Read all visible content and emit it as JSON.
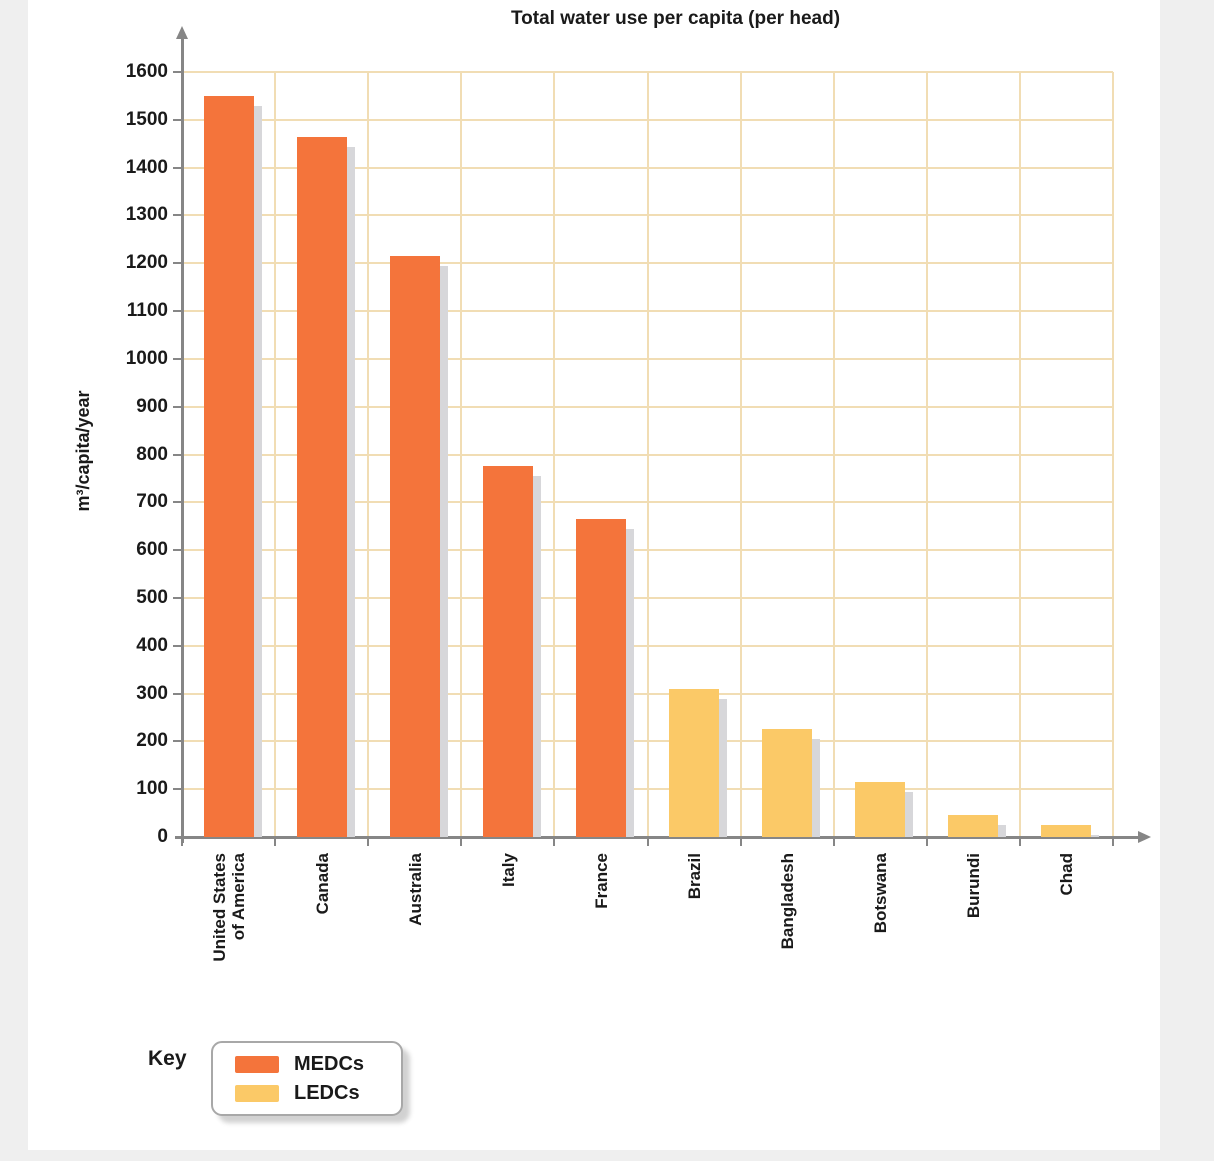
{
  "chart_data": {
    "type": "bar",
    "title": "Total water use per capita (per head)",
    "ylabel": "m³/capita/year",
    "xlabel": "",
    "ylim": [
      0,
      1600
    ],
    "ytick_step": 100,
    "grid": true,
    "legend_position": "bottom-left",
    "categories": [
      "United States\nof America",
      "Canada",
      "Australia",
      "Italy",
      "France",
      "Brazil",
      "Bangladesh",
      "Botswana",
      "Burundi",
      "Chad"
    ],
    "values": [
      1550,
      1465,
      1215,
      775,
      665,
      310,
      225,
      115,
      45,
      25
    ],
    "groups": [
      "MEDCs",
      "MEDCs",
      "MEDCs",
      "MEDCs",
      "MEDCs",
      "LEDCs",
      "LEDCs",
      "LEDCs",
      "LEDCs",
      "LEDCs"
    ],
    "group_colors": {
      "MEDCs": "#f4743b",
      "LEDCs": "#fbc967"
    }
  },
  "key": {
    "label": "Key",
    "items": [
      {
        "label": "MEDCs",
        "color": "#f4743b"
      },
      {
        "label": "LEDCs",
        "color": "#fbc967"
      }
    ]
  },
  "colors": {
    "page_bg": "#efefef",
    "panel_bg": "#ffffff",
    "grid": "#f1ddb4",
    "axis": "#868686",
    "bar_shadow": "#d7d7da",
    "text": "#1a1a1a"
  }
}
